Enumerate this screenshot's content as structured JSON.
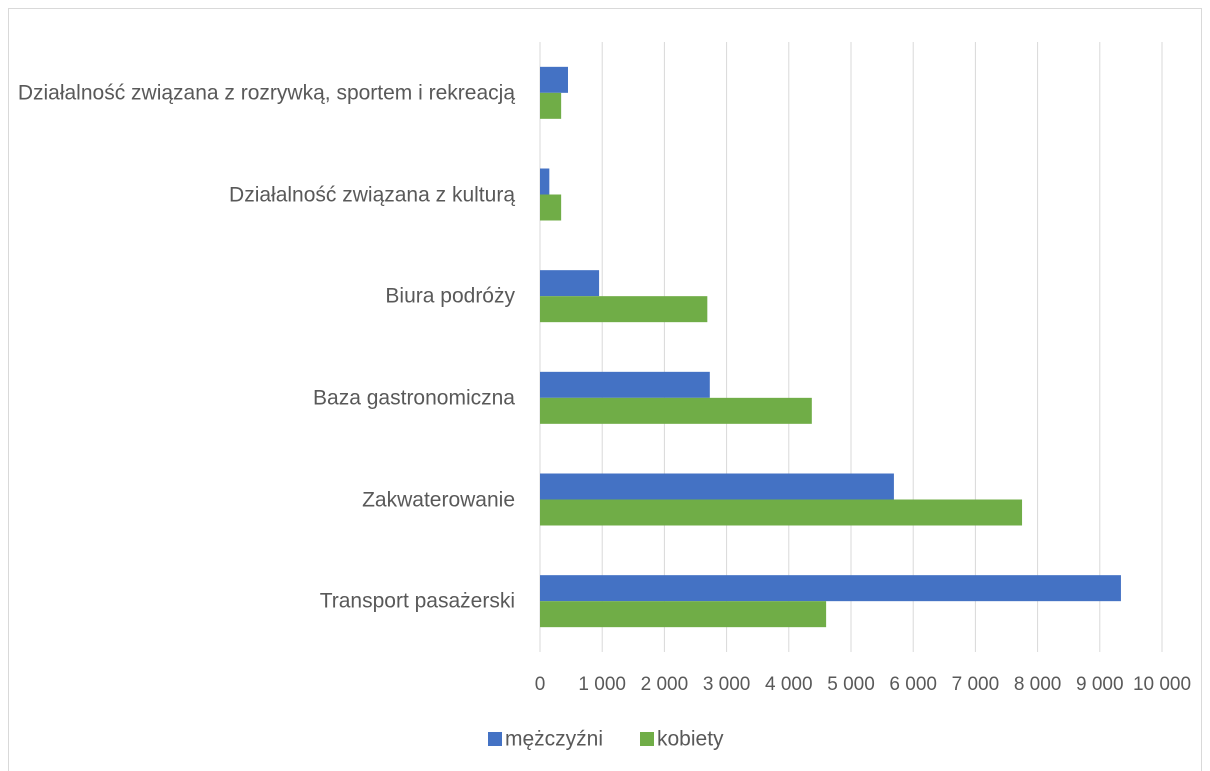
{
  "chart_data": {
    "type": "bar",
    "orientation": "horizontal",
    "categories": [
      "Działalność związana z rozrywką, sportem i rekreacją",
      "Działalność związana z kulturą",
      "Biura podróży",
      "Baza gastronomiczna",
      "Zakwaterowanie",
      "Transport pasażerski"
    ],
    "series": [
      {
        "name": "mężczyźni",
        "color": "#4472c4",
        "values": [
          450,
          150,
          950,
          2730,
          5690,
          9340
        ]
      },
      {
        "name": "kobiety",
        "color": "#70ad47",
        "values": [
          340,
          340,
          2690,
          4370,
          7750,
          4600
        ]
      }
    ],
    "xlim": [
      0,
      10000
    ],
    "xticks": [
      0,
      {
        "value": 1000,
        "label": "1 000"
      },
      {
        "value": 2000,
        "label": "2 000"
      },
      {
        "value": 3000,
        "label": "3 000"
      },
      {
        "value": 4000,
        "label": "4 000"
      },
      {
        "value": 5000,
        "label": "5 000"
      },
      {
        "value": 6000,
        "label": "6 000"
      },
      {
        "value": 7000,
        "label": "7 000"
      },
      {
        "value": 8000,
        "label": "8 000"
      },
      {
        "value": 9000,
        "label": "9 000"
      },
      {
        "value": 10000,
        "label": "10 000"
      }
    ],
    "grid": true,
    "legend": "bottom"
  }
}
